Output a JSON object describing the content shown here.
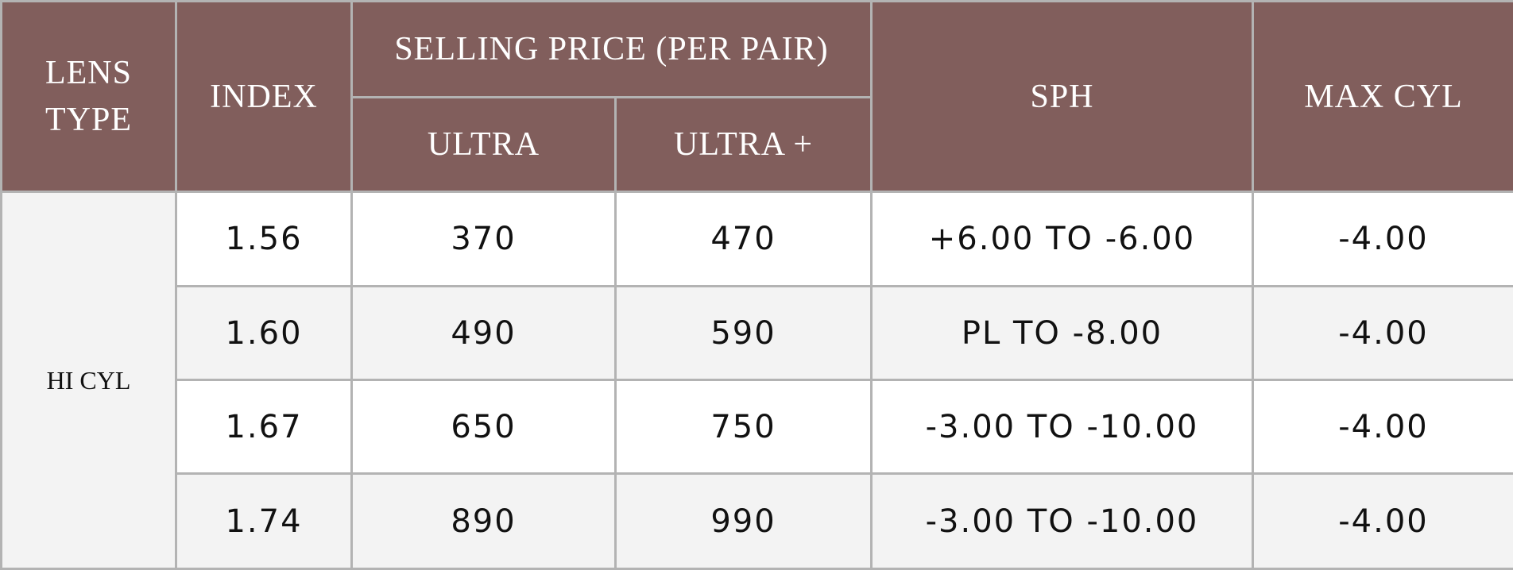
{
  "table": {
    "header": {
      "lens_type": "LENS TYPE",
      "index": "INDEX",
      "selling_price": "SELLING PRICE (PER PAIR)",
      "ultra": "ULTRA",
      "ultra_plus": "ULTRA +",
      "sph": "SPH",
      "max_cyl": "MAX CYL"
    },
    "lens_type": "HI CYL",
    "rows": [
      [
        "1.56",
        "370",
        "470",
        "+6.00 TO -6.00",
        "-4.00"
      ],
      [
        "1.60",
        "490",
        "590",
        "PL TO -8.00",
        "-4.00"
      ],
      [
        "1.67",
        "650",
        "750",
        "-3.00 TO -10.00",
        "-4.00"
      ],
      [
        "1.74",
        "890",
        "990",
        "-3.00 TO -10.00",
        "-4.00"
      ]
    ]
  }
}
